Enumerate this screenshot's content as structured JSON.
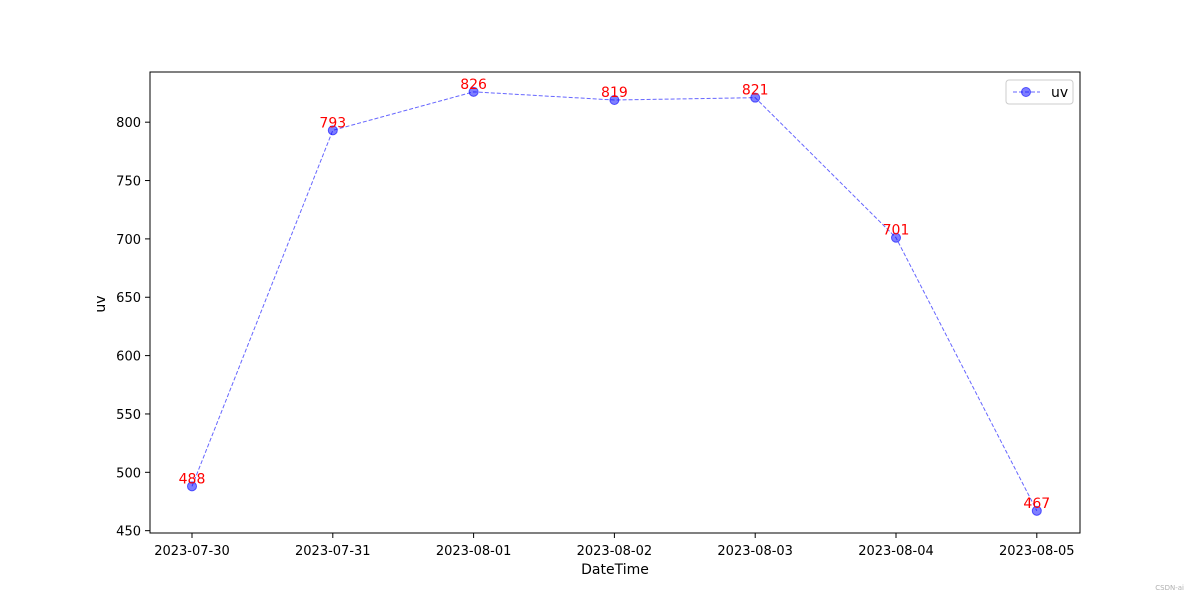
{
  "chart_data": {
    "type": "line",
    "title": "",
    "xlabel": "DateTime",
    "ylabel": "uv",
    "x": [
      "2023-07-30",
      "2023-07-31",
      "2023-08-01",
      "2023-08-02",
      "2023-08-03",
      "2023-08-04",
      "2023-08-05"
    ],
    "yticks": [
      450,
      500,
      550,
      600,
      650,
      700,
      750,
      800
    ],
    "ylim": [
      448,
      843
    ],
    "grid": false,
    "legend_position": "top-right",
    "series": [
      {
        "name": "uv",
        "values": [
          488,
          793,
          826,
          819,
          821,
          701,
          467
        ],
        "color": "#0000ff",
        "line_style": "dashed",
        "marker": "circle"
      }
    ],
    "data_label_color": "#ff0000"
  },
  "watermark": "CSDN-ai"
}
